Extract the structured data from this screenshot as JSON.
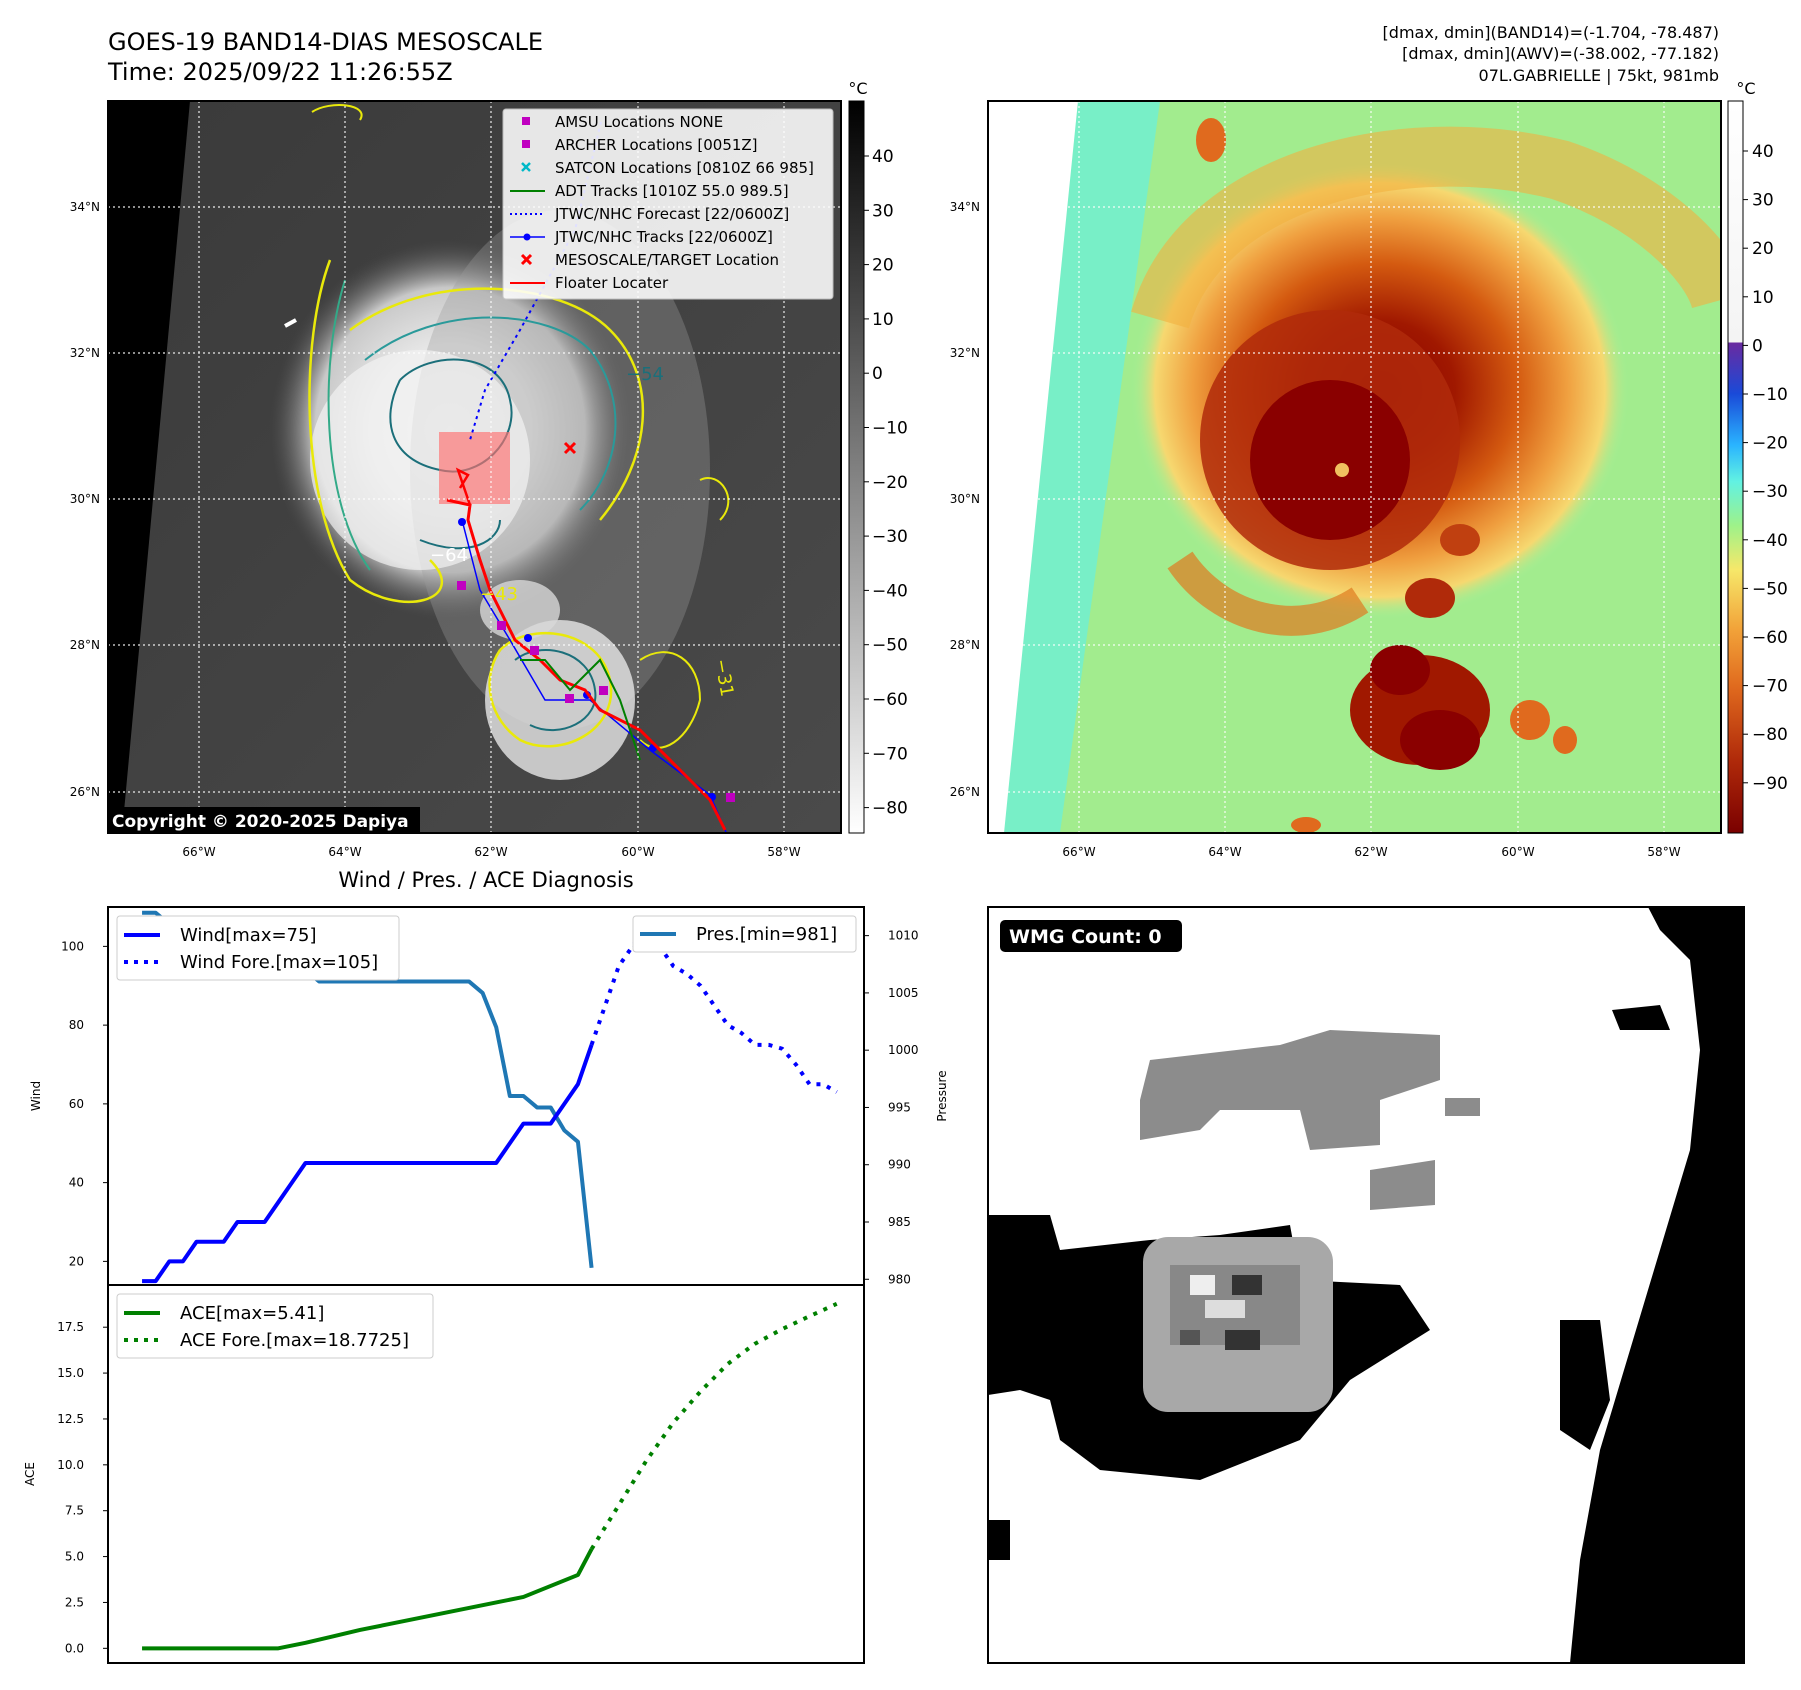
{
  "header": {
    "title": "GOES-19 BAND14-DIAS MESOSCALE",
    "time": "Time: 2025/09/22 11:26:55Z",
    "stats_band14": "[dmax, dmin](BAND14)=(-1.704, -78.487)",
    "stats_awv": "[dmax, dmin](AWV)=(-38.002, -77.182)",
    "storm": "07L.GABRIELLE | 75kt, 981mb"
  },
  "maps": {
    "lat_labels": [
      "34°N",
      "32°N",
      "30°N",
      "28°N",
      "26°N"
    ],
    "lon_labels": [
      "66°W",
      "64°W",
      "62°W",
      "60°W",
      "58°W"
    ],
    "unit": "°C",
    "cbar_left_ticks": [
      "40",
      "30",
      "20",
      "10",
      "0",
      "−10",
      "−20",
      "−30",
      "−40",
      "−50",
      "−60",
      "−70",
      "−80"
    ],
    "cbar_right_ticks": [
      "40",
      "30",
      "20",
      "10",
      "0",
      "−10",
      "−20",
      "−30",
      "−40",
      "−50",
      "−60",
      "−70",
      "−80",
      "−90"
    ],
    "copyright": "Copyright © 2020-2025 Dapiya",
    "contour_labels": [
      "−64",
      "−54",
      "−31",
      "−43"
    ],
    "legend": [
      {
        "label": "AMSU Locations NONE",
        "marker": "square",
        "color": "#c000c0"
      },
      {
        "label": "ARCHER Locations [0051Z]",
        "marker": "square",
        "color": "#c000c0"
      },
      {
        "label": "SATCON Locations [0810Z 66 985]",
        "marker": "x",
        "color": "#00b8c8"
      },
      {
        "label": "ADT Tracks [1010Z 55.0 989.5]",
        "marker": "line",
        "color": "#008000"
      },
      {
        "label": "JTWC/NHC Forecast [22/0600Z]",
        "marker": "dotted",
        "color": "#0000ff"
      },
      {
        "label": "JTWC/NHC Tracks [22/0600Z]",
        "marker": "line-dot",
        "color": "#0000ff"
      },
      {
        "label": "MESOSCALE/TARGET Location",
        "marker": "x",
        "color": "#ff0000"
      },
      {
        "label": "Floater Locater",
        "marker": "line",
        "color": "#ff0000"
      }
    ]
  },
  "diagnosis": {
    "title": "Wind / Pres. / ACE Diagnosis",
    "wind_ylabel": "Wind",
    "pres_ylabel": "Pressure",
    "ace_ylabel": "ACE",
    "legend_wind": [
      "Wind[max=75]",
      "Wind Fore.[max=105]"
    ],
    "legend_pres": [
      "Pres.[min=981]"
    ],
    "legend_ace": [
      "ACE[max=5.41]",
      "ACE Fore.[max=18.7725]"
    ]
  },
  "wmg": {
    "label": "WMG Count: 0"
  },
  "colors": {
    "wind": "#0000ff",
    "pressure": "#1f77b4",
    "ace": "#008000",
    "floater": "#ff0000",
    "adt": "#008000"
  },
  "chart_data": [
    {
      "type": "line",
      "title": "",
      "ylabel": "Wind",
      "ylim": [
        14,
        110
      ],
      "series": [
        {
          "name": "Wind[max=75]",
          "x": [
            0,
            1,
            2,
            3,
            4,
            5,
            6,
            7,
            8,
            9,
            10,
            11,
            12,
            13,
            14,
            15,
            16,
            17,
            18,
            19,
            20,
            21,
            22,
            23,
            24,
            25,
            26,
            27,
            28,
            29,
            30,
            31,
            32,
            33
          ],
          "values": [
            15,
            15,
            20,
            20,
            25,
            25,
            25,
            30,
            30,
            30,
            35,
            40,
            45,
            45,
            45,
            45,
            45,
            45,
            45,
            45,
            45,
            45,
            45,
            45,
            45,
            45,
            45,
            50,
            55,
            55,
            55,
            60,
            65,
            75
          ]
        },
        {
          "name": "Wind Fore.[max=105]",
          "x": [
            33,
            34,
            35,
            36,
            37,
            38,
            39,
            40,
            41,
            42,
            43,
            44,
            45,
            46,
            47,
            48,
            49,
            50,
            51
          ],
          "values": [
            75,
            85,
            95,
            100,
            105,
            100,
            95,
            93,
            90,
            85,
            80,
            78,
            75,
            75,
            74,
            70,
            65,
            65,
            63
          ]
        }
      ]
    },
    {
      "type": "line",
      "ylabel": "Pressure",
      "ylim": [
        979.5,
        1012.5
      ],
      "series": [
        {
          "name": "Pres.[min=981]",
          "x": [
            0,
            1,
            2,
            3,
            4,
            5,
            6,
            7,
            8,
            9,
            10,
            11,
            12,
            13,
            14,
            15,
            16,
            17,
            18,
            19,
            20,
            21,
            22,
            23,
            24,
            25,
            26,
            27,
            28,
            29,
            30,
            31,
            32,
            33
          ],
          "values": [
            1012,
            1012,
            1011,
            1011,
            1010,
            1010,
            1009,
            1009,
            1009,
            1008,
            1008,
            1007,
            1007,
            1006,
            1006,
            1006,
            1006,
            1006,
            1006,
            1006,
            1006,
            1006,
            1006,
            1006,
            1006,
            1005,
            1002,
            996,
            996,
            995,
            995,
            993,
            992,
            981
          ]
        }
      ]
    },
    {
      "type": "line",
      "ylabel": "ACE",
      "ylim": [
        -0.8,
        19.8
      ],
      "series": [
        {
          "name": "ACE[max=5.41]",
          "x": [
            0,
            2,
            4,
            6,
            8,
            10,
            12,
            14,
            16,
            18,
            20,
            22,
            24,
            26,
            28,
            30,
            32,
            33
          ],
          "values": [
            0,
            0,
            0,
            0,
            0,
            0,
            0.3,
            0.65,
            1.0,
            1.3,
            1.6,
            1.9,
            2.2,
            2.5,
            2.8,
            3.4,
            4.0,
            5.41
          ]
        },
        {
          "name": "ACE Fore.[max=18.7725]",
          "x": [
            33,
            35,
            37,
            39,
            41,
            43,
            45,
            47,
            49,
            51
          ],
          "values": [
            5.41,
            7.8,
            10.2,
            12.3,
            14.0,
            15.5,
            16.6,
            17.4,
            18.1,
            18.7725
          ]
        }
      ]
    }
  ]
}
